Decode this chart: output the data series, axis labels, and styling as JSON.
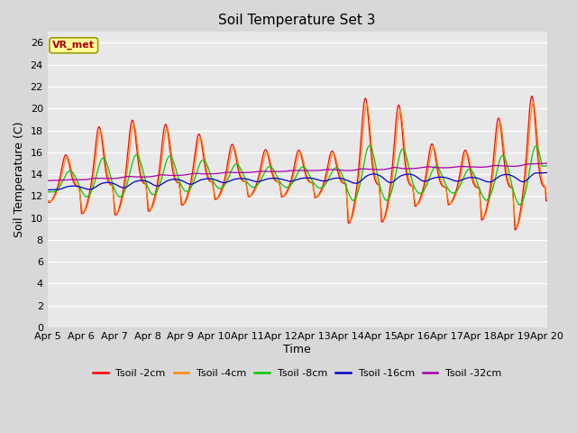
{
  "title": "Soil Temperature Set 3",
  "xlabel": "Time",
  "ylabel": "Soil Temperature (C)",
  "ylim": [
    0,
    27
  ],
  "yticks": [
    0,
    2,
    4,
    6,
    8,
    10,
    12,
    14,
    16,
    18,
    20,
    22,
    24,
    26
  ],
  "xtick_labels": [
    "Apr 5",
    "Apr 6",
    "Apr 7",
    "Apr 8",
    "Apr 9",
    "Apr 10",
    "Apr 11",
    "Apr 12",
    "Apr 13",
    "Apr 14",
    "Apr 15",
    "Apr 16",
    "Apr 17",
    "Apr 18",
    "Apr 19",
    "Apr 20"
  ],
  "legend_labels": [
    "Tsoil -2cm",
    "Tsoil -4cm",
    "Tsoil -8cm",
    "Tsoil -16cm",
    "Tsoil -32cm"
  ],
  "line_colors": [
    "#ff0000",
    "#ff8800",
    "#00cc00",
    "#0000cc",
    "#aa00aa"
  ],
  "fig_bg_color": "#d8d8d8",
  "plot_bg_color": "#e8e8e8",
  "annotation_text": "VR_met",
  "annotation_box_color": "#ffff99",
  "annotation_text_color": "#aa0000",
  "annotation_border_color": "#999900",
  "n_points": 720,
  "days": 15
}
